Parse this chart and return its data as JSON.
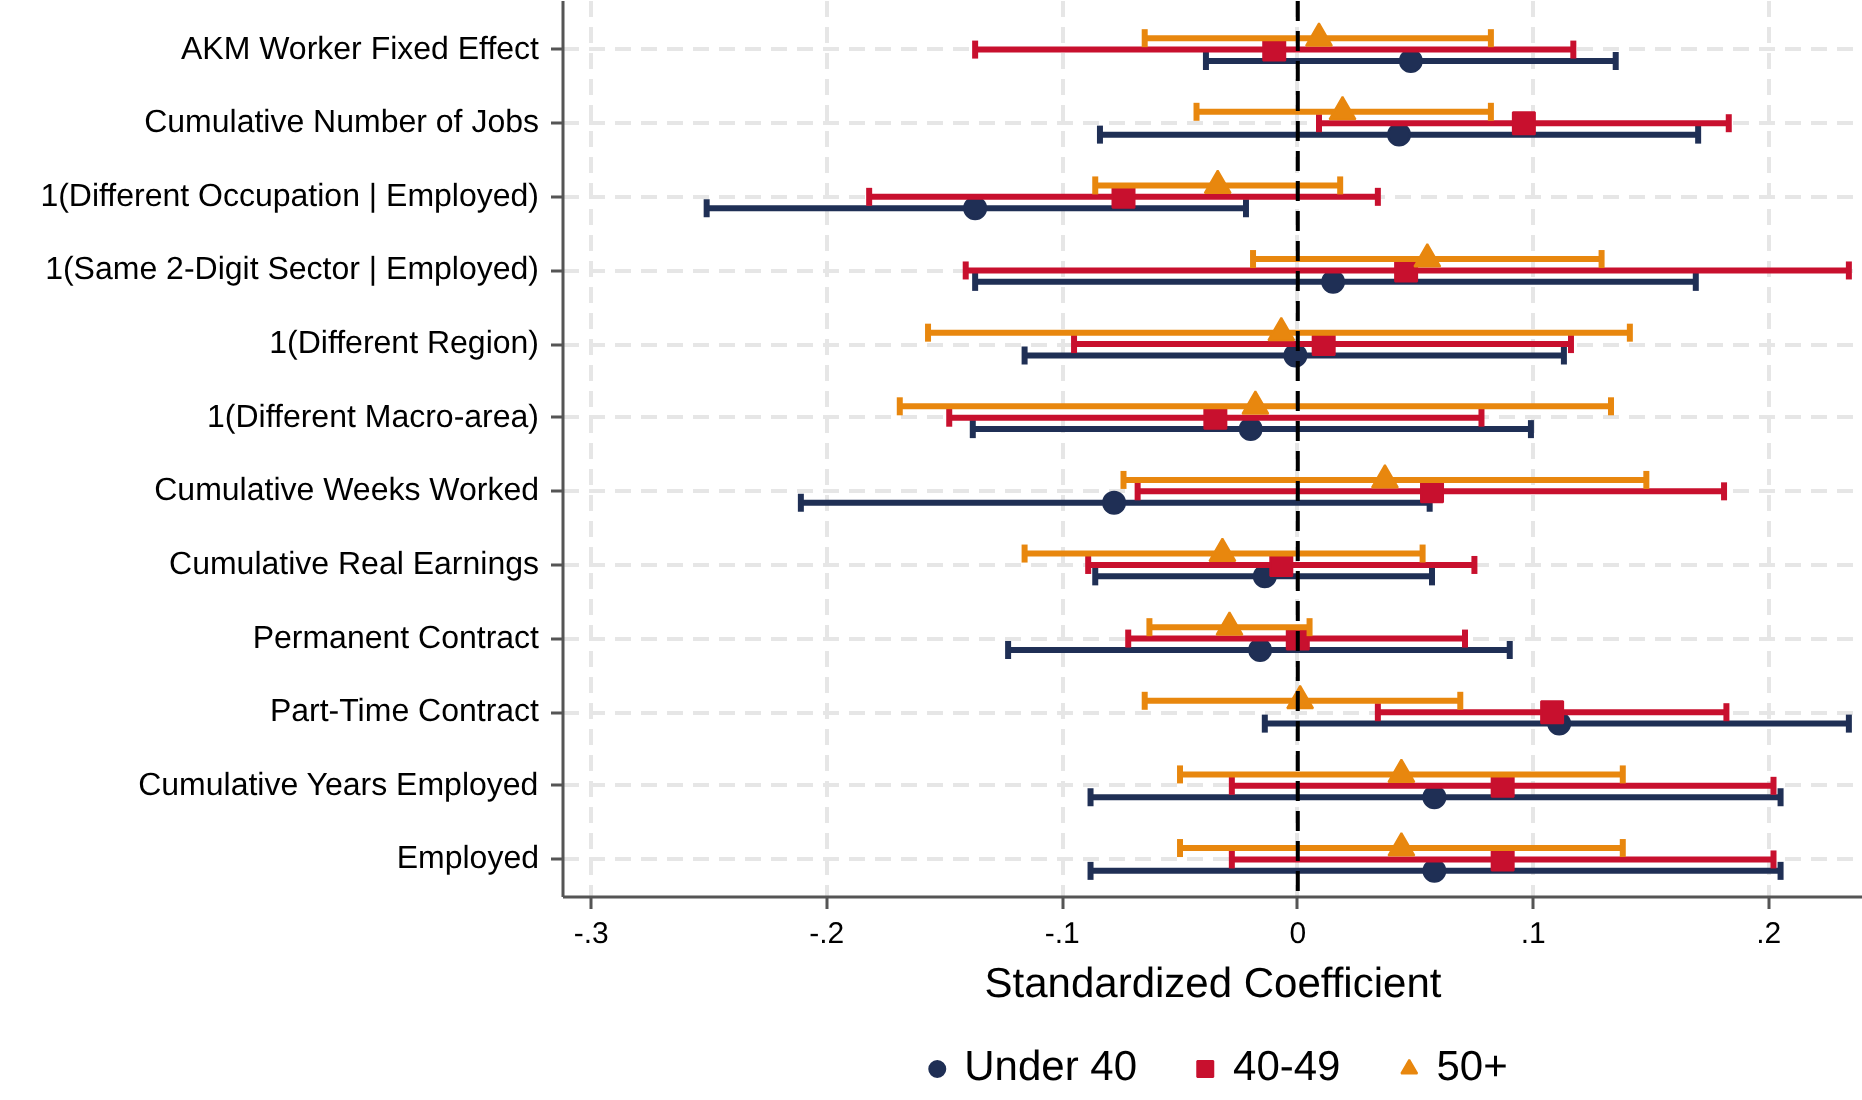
{
  "chart_data": {
    "type": "scatter",
    "orientation": "horizontal",
    "xlabel": "Standardized Coefficient",
    "categories": [
      "AKM Worker Fixed Effect",
      "Cumulative Number of Jobs",
      "1(Different Occupation | Employed)",
      "1(Same 2-Digit Sector | Employed)",
      "1(Different Region)",
      "1(Different Macro-area)",
      "Cumulative Weeks Worked",
      "Cumulative Real Earnings",
      "Permanent Contract",
      "Part-Time Contract",
      "Cumulative Years Employed",
      "Employed"
    ],
    "xlim": [
      -0.312,
      0.24
    ],
    "xticks": [
      {
        "value": -0.3,
        "label": "-.3"
      },
      {
        "value": -0.2,
        "label": "-.2"
      },
      {
        "value": -0.1,
        "label": "-.1"
      },
      0,
      {
        "value": 0.1,
        "label": ".1"
      },
      {
        "value": 0.2,
        "label": ".2"
      }
    ],
    "grid": true,
    "legend": "bottom",
    "ref_lines": [
      {
        "axis": "x",
        "value": 0,
        "color": "#000000",
        "line_style": "dashed"
      }
    ],
    "series": [
      {
        "name": "Under 40",
        "color": "#1f2f55",
        "marker": "circle",
        "values": [
          0.048,
          0.043,
          -0.137,
          0.015,
          -0.001,
          -0.02,
          -0.078,
          -0.014,
          -0.016,
          0.111,
          0.058,
          0.058
        ],
        "errors": [
          [
            -0.039,
            0.135
          ],
          [
            -0.084,
            0.17
          ],
          [
            -0.251,
            -0.022
          ],
          [
            -0.137,
            0.169
          ],
          [
            -0.116,
            0.113
          ],
          [
            -0.138,
            0.099
          ],
          [
            -0.211,
            0.056
          ],
          [
            -0.086,
            0.057
          ],
          [
            -0.123,
            0.09
          ],
          [
            -0.014,
            0.234
          ],
          [
            -0.088,
            0.205
          ],
          [
            -0.088,
            0.205
          ]
        ]
      },
      {
        "name": "40-49",
        "color": "#c8102e",
        "marker": "square",
        "values": [
          -0.01,
          0.096,
          -0.074,
          0.046,
          0.011,
          -0.035,
          0.057,
          -0.007,
          0.0,
          0.108,
          0.087,
          0.087
        ],
        "errors": [
          [
            -0.137,
            0.117
          ],
          [
            0.009,
            0.183
          ],
          [
            -0.182,
            0.034
          ],
          [
            -0.141,
            0.234
          ],
          [
            -0.095,
            0.116
          ],
          [
            -0.148,
            0.078
          ],
          [
            -0.068,
            0.181
          ],
          [
            -0.089,
            0.075
          ],
          [
            -0.072,
            0.071
          ],
          [
            0.034,
            0.182
          ],
          [
            -0.028,
            0.202
          ],
          [
            -0.028,
            0.202
          ]
        ]
      },
      {
        "name": "50+",
        "color": "#e8870e",
        "marker": "triangle",
        "values": [
          0.009,
          0.019,
          -0.034,
          0.055,
          -0.007,
          -0.018,
          0.037,
          -0.032,
          -0.029,
          0.001,
          0.044,
          0.044
        ],
        "errors": [
          [
            -0.065,
            0.082
          ],
          [
            -0.043,
            0.082
          ],
          [
            -0.086,
            0.018
          ],
          [
            -0.019,
            0.129
          ],
          [
            -0.157,
            0.141
          ],
          [
            -0.169,
            0.133
          ],
          [
            -0.074,
            0.148
          ],
          [
            -0.116,
            0.053
          ],
          [
            -0.063,
            0.005
          ],
          [
            -0.065,
            0.069
          ],
          [
            -0.05,
            0.138
          ],
          [
            -0.05,
            0.138
          ]
        ]
      }
    ]
  }
}
